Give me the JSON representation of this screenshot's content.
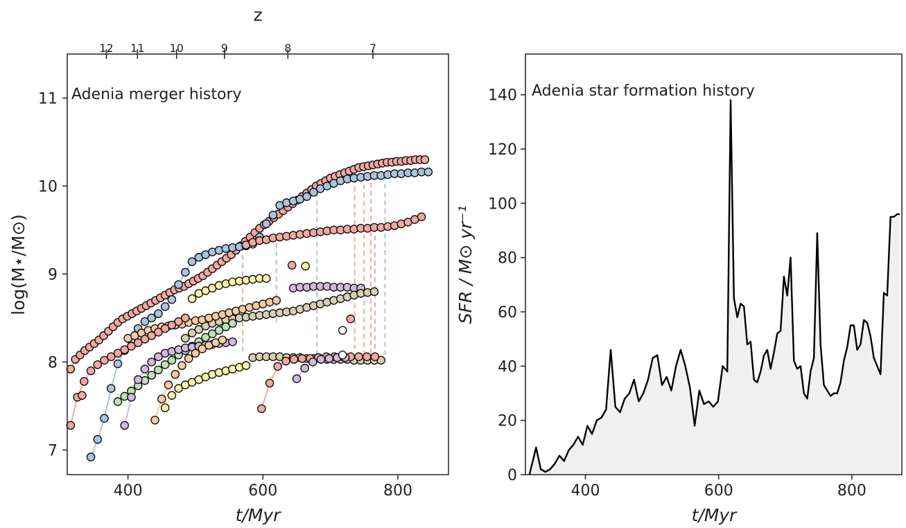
{
  "chart_data": [
    {
      "type": "scatter",
      "title": "Adenia merger history",
      "xlabel": "t/Myr",
      "ylabel": "log(M⋆/M⊙)",
      "xlim": [
        310,
        875
      ],
      "ylim": [
        6.72,
        11.5
      ],
      "xticks": [
        400,
        600,
        800
      ],
      "yticks": [
        7,
        8,
        9,
        10,
        11
      ],
      "top_axis": {
        "label": "z",
        "ticks": [
          {
            "t": 368,
            "z": "12"
          },
          {
            "t": 414,
            "z": "11"
          },
          {
            "t": 472,
            "z": "10"
          },
          {
            "t": 543,
            "z": "9"
          },
          {
            "t": 637,
            "z": "8"
          },
          {
            "t": 763,
            "z": "7"
          }
        ]
      },
      "grid": false,
      "series": [
        {
          "color": "#f1a8a0",
          "x": [
            315,
            322,
            329,
            336,
            343,
            350,
            357,
            364,
            371,
            378,
            385,
            392,
            399,
            406,
            413,
            420,
            427,
            434,
            441,
            448,
            455,
            462,
            469,
            476,
            483,
            490,
            497,
            504,
            511,
            518,
            525,
            532,
            539,
            546,
            553,
            560,
            567,
            574,
            581,
            588,
            595,
            602,
            609,
            616,
            623,
            630,
            637,
            644,
            651,
            658,
            665,
            672,
            679,
            686,
            693,
            700,
            707,
            714,
            721,
            728,
            735,
            742,
            749,
            756,
            763,
            770,
            777,
            784,
            791,
            798,
            805,
            812,
            819,
            826,
            833,
            840
          ],
          "y": [
            7.92,
            8.03,
            8.08,
            8.13,
            8.17,
            8.21,
            8.25,
            8.3,
            8.35,
            8.4,
            8.45,
            8.49,
            8.52,
            8.55,
            8.58,
            8.61,
            8.64,
            8.67,
            8.7,
            8.73,
            8.76,
            8.79,
            8.82,
            8.84,
            8.86,
            8.89,
            8.92,
            8.95,
            8.98,
            9.02,
            9.06,
            9.1,
            9.14,
            9.18,
            9.22,
            9.27,
            9.32,
            9.37,
            9.42,
            9.47,
            9.52,
            9.56,
            9.6,
            9.64,
            9.68,
            9.72,
            9.76,
            9.8,
            9.84,
            9.88,
            9.92,
            9.96,
            10.0,
            10.03,
            10.06,
            10.09,
            10.11,
            10.13,
            10.15,
            10.17,
            10.19,
            10.21,
            10.22,
            10.23,
            10.24,
            10.25,
            10.26,
            10.27,
            10.27,
            10.28,
            10.28,
            10.29,
            10.29,
            10.3,
            10.3,
            10.3
          ]
        },
        {
          "color": "#a9c4e0",
          "x": [
            345,
            355,
            365,
            375,
            385,
            395,
            405,
            415,
            425,
            435,
            445,
            455,
            465,
            475,
            485,
            495,
            505,
            515,
            525,
            535,
            545,
            555,
            565,
            575,
            585,
            595,
            605,
            615,
            625,
            635,
            645,
            655,
            665,
            675,
            685,
            695,
            705,
            715,
            725,
            735,
            745,
            755,
            765,
            775,
            785,
            795,
            805,
            815,
            825,
            835,
            845
          ],
          "y": [
            6.92,
            7.12,
            7.36,
            7.7,
            7.98,
            8.13,
            8.24,
            8.38,
            8.46,
            8.5,
            8.55,
            8.63,
            8.71,
            8.88,
            9.02,
            9.14,
            9.19,
            9.22,
            9.25,
            9.27,
            9.29,
            9.3,
            9.31,
            9.32,
            9.34,
            9.42,
            9.57,
            9.67,
            9.78,
            9.81,
            9.83,
            9.85,
            9.88,
            9.93,
            9.97,
            10.0,
            10.03,
            10.06,
            10.08,
            10.09,
            10.1,
            10.11,
            10.12,
            10.12,
            10.13,
            10.14,
            10.14,
            10.15,
            10.15,
            10.16,
            10.16
          ]
        },
        {
          "color": "#f1a8a0",
          "x": [
            575,
            585,
            595,
            605,
            615,
            625,
            635,
            645,
            655,
            665,
            675,
            685,
            695,
            705,
            715,
            725,
            735,
            745,
            755,
            765,
            775,
            785,
            795,
            805,
            815,
            825,
            835
          ],
          "y": [
            9.33,
            9.36,
            9.38,
            9.39,
            9.41,
            9.42,
            9.43,
            9.44,
            9.45,
            9.46,
            9.47,
            9.48,
            9.49,
            9.5,
            9.5,
            9.51,
            9.51,
            9.52,
            9.52,
            9.53,
            9.53,
            9.54,
            9.55,
            9.57,
            9.59,
            9.62,
            9.65
          ]
        },
        {
          "color": "#f9f3a8",
          "x": [
            495,
            505,
            515,
            525,
            535,
            545,
            555,
            565,
            575,
            585,
            595,
            605
          ],
          "y": [
            8.72,
            8.78,
            8.81,
            8.84,
            8.87,
            8.89,
            8.91,
            8.92,
            8.93,
            8.94,
            8.95,
            8.95
          ]
        },
        {
          "color": "#d4b8dc",
          "x": [
            645,
            655,
            665,
            675,
            685,
            695,
            705,
            715,
            725,
            735,
            745
          ],
          "y": [
            8.84,
            8.85,
            8.85,
            8.86,
            8.86,
            8.86,
            8.85,
            8.85,
            8.85,
            8.84,
            8.84
          ]
        },
        {
          "color": "#d8cfae",
          "x": [
            485,
            495,
            505,
            515,
            525,
            535,
            545,
            555,
            565,
            575,
            585,
            595,
            605,
            615,
            625,
            635,
            645,
            655,
            665,
            675,
            685,
            695,
            705,
            715,
            725,
            735,
            745,
            755,
            765
          ],
          "y": [
            8.27,
            8.33,
            8.37,
            8.41,
            8.44,
            8.46,
            8.48,
            8.49,
            8.5,
            8.51,
            8.52,
            8.53,
            8.54,
            8.55,
            8.56,
            8.57,
            8.58,
            8.6,
            8.62,
            8.64,
            8.66,
            8.68,
            8.7,
            8.72,
            8.74,
            8.76,
            8.78,
            8.79,
            8.8
          ]
        },
        {
          "color": "#f7caa0",
          "x": [
            400,
            410,
            420,
            430,
            440,
            450,
            460,
            470,
            480,
            490,
            500,
            510,
            520,
            530,
            540,
            550,
            560,
            570,
            580,
            590,
            600,
            610,
            620
          ],
          "y": [
            8.27,
            8.3,
            8.33,
            8.36,
            8.38,
            8.4,
            8.41,
            8.42,
            8.43,
            8.45,
            8.47,
            8.48,
            8.5,
            8.52,
            8.54,
            8.56,
            8.58,
            8.6,
            8.62,
            8.64,
            8.66,
            8.68,
            8.7
          ]
        },
        {
          "color": "#bfe0b6",
          "x": [
            385,
            395,
            405,
            415,
            425,
            435,
            445,
            455,
            465,
            475,
            485,
            495,
            505,
            515,
            525,
            535,
            545,
            555
          ],
          "y": [
            7.55,
            7.61,
            7.67,
            7.73,
            7.79,
            7.85,
            7.91,
            7.97,
            8.02,
            8.08,
            8.13,
            8.18,
            8.23,
            8.28,
            8.32,
            8.36,
            8.4,
            8.44
          ]
        },
        {
          "color": "#f9f3a8",
          "x": [
            455,
            465,
            475,
            485,
            495,
            505,
            515,
            525,
            535,
            545,
            555,
            565,
            575
          ],
          "y": [
            7.48,
            7.62,
            7.7,
            7.74,
            7.77,
            7.8,
            7.83,
            7.86,
            7.88,
            7.9,
            7.92,
            7.94,
            7.96
          ]
        },
        {
          "color": "#d8cfae",
          "x": [
            585,
            595,
            605,
            615,
            625,
            635,
            645,
            655,
            665,
            675,
            685,
            695,
            705,
            715,
            725,
            735,
            745,
            755,
            765,
            775
          ],
          "y": [
            8.05,
            8.06,
            8.06,
            8.06,
            8.06,
            8.05,
            8.05,
            8.05,
            8.04,
            8.04,
            8.04,
            8.03,
            8.03,
            8.03,
            8.03,
            8.02,
            8.02,
            8.02,
            8.02,
            8.02
          ]
        },
        {
          "color": "#f1a8a0",
          "x": [
            315,
            325,
            335,
            345,
            355,
            365,
            375,
            385,
            395,
            405,
            415,
            425,
            435,
            445,
            455,
            465,
            475,
            485
          ],
          "y": [
            7.28,
            7.6,
            7.78,
            7.9,
            7.97,
            8.02,
            8.06,
            8.1,
            8.14,
            8.18,
            8.22,
            8.26,
            8.3,
            8.34,
            8.38,
            8.42,
            8.46,
            8.5
          ]
        },
        {
          "color": "#d4b8dc",
          "x": [
            395,
            405,
            415,
            425,
            435,
            445,
            455,
            465,
            475,
            485,
            495,
            505,
            515,
            525,
            535,
            545,
            555
          ],
          "y": [
            7.28,
            7.6,
            7.8,
            7.92,
            8.0,
            8.06,
            8.1,
            8.12,
            8.14,
            8.16,
            8.17,
            8.18,
            8.19,
            8.2,
            8.21,
            8.22,
            8.23
          ]
        },
        {
          "color": "#f7caa0",
          "x": [
            440,
            450,
            460,
            470,
            480,
            490,
            500,
            510,
            520,
            530,
            540
          ],
          "y": [
            7.34,
            7.58,
            7.74,
            7.86,
            7.96,
            8.04,
            8.1,
            8.15,
            8.19,
            8.22,
            8.25
          ]
        },
        {
          "color": "#f1a8a0",
          "x": [
            598,
            610,
            622,
            634,
            646,
            658,
            670,
            682,
            694,
            706,
            718,
            730,
            742,
            754,
            766
          ],
          "y": [
            7.47,
            7.76,
            7.95,
            8.01,
            8.03,
            8.04,
            8.04,
            8.05,
            8.06,
            8.06,
            8.06,
            8.06,
            8.06,
            8.06,
            8.06
          ]
        },
        {
          "color": "#d4b8dc",
          "x": [
            650,
            662,
            674,
            686,
            698,
            710,
            722
          ],
          "y": [
            7.81,
            7.93,
            8.0,
            8.03,
            8.04,
            8.05,
            8.05
          ]
        }
      ],
      "dashed_drops": [
        {
          "color": "#a9c4e0",
          "x": [
            620,
            620
          ],
          "y": [
            9.35,
            8.45
          ]
        },
        {
          "color": "#f1a8a0",
          "x": [
            736,
            736
          ],
          "y": [
            10.18,
            8.15
          ]
        },
        {
          "color": "#f1a8a0",
          "x": [
            750,
            750
          ],
          "y": [
            10.21,
            8.05
          ]
        },
        {
          "color": "#f1a8a0",
          "x": [
            760,
            760
          ],
          "y": [
            10.23,
            8.1
          ]
        },
        {
          "color": "#f1a8a0",
          "x": [
            766,
            766
          ],
          "y": [
            9.53,
            8.1
          ]
        },
        {
          "color": "#a9c4e0",
          "x": [
            781,
            781
          ],
          "y": [
            10.12,
            8.02
          ]
        },
        {
          "color": "#f1a8a0",
          "x": [
            570,
            570
          ],
          "y": [
            9.31,
            8.1
          ]
        },
        {
          "color": "#a9c4e0",
          "x": [
            680,
            680
          ],
          "y": [
            9.93,
            8.04
          ]
        }
      ],
      "extra_points": [
        {
          "x": 332,
          "y": 7.62,
          "color": "#f1a8a0"
        },
        {
          "x": 718,
          "y": 8.36,
          "color": "#ffffff"
        },
        {
          "x": 730,
          "y": 8.49,
          "color": "#f1a8a0"
        },
        {
          "x": 718,
          "y": 8.08,
          "color": "#ffffff"
        },
        {
          "x": 643,
          "y": 9.1,
          "color": "#f1a8a0"
        },
        {
          "x": 663,
          "y": 9.09,
          "color": "#f9f3a8"
        }
      ]
    },
    {
      "type": "area",
      "title": "Adenia star formation history",
      "xlabel": "t/Myr",
      "ylabel": "SFR / M⊙ yr⁻¹",
      "xlim": [
        310,
        875
      ],
      "ylim": [
        0,
        155
      ],
      "xticks": [
        400,
        600,
        800
      ],
      "yticks": [
        0,
        20,
        40,
        60,
        80,
        100,
        120,
        140
      ],
      "grid": false,
      "fill_color": "#f0f0f0",
      "line_color": "#000000",
      "x": [
        316,
        326,
        333,
        340,
        347,
        354,
        361,
        368,
        375,
        382,
        389,
        396,
        403,
        410,
        417,
        424,
        431,
        438,
        445,
        452,
        459,
        466,
        473,
        480,
        487,
        494,
        501,
        508,
        515,
        522,
        529,
        536,
        543,
        550,
        557,
        564,
        571,
        578,
        585,
        592,
        599,
        606,
        613,
        618,
        623,
        628,
        633,
        638,
        643,
        648,
        653,
        658,
        663,
        668,
        673,
        678,
        683,
        688,
        693,
        698,
        703,
        708,
        713,
        718,
        723,
        728,
        733,
        738,
        743,
        748,
        753,
        758,
        763,
        768,
        773,
        778,
        783,
        788,
        793,
        798,
        803,
        808,
        813,
        818,
        823,
        828,
        833,
        838,
        843,
        848,
        853,
        858,
        863,
        868,
        872
      ],
      "y": [
        0,
        10,
        2,
        1,
        2,
        4,
        7,
        5,
        9,
        11,
        14,
        11,
        18,
        15,
        20,
        21,
        24,
        46,
        25,
        23,
        28,
        30,
        35,
        27,
        30,
        35,
        43,
        44,
        33,
        36,
        31,
        40,
        46,
        40,
        32,
        18,
        31,
        26,
        27,
        25,
        27,
        40,
        38,
        138,
        65,
        58,
        63,
        62,
        48,
        49,
        35,
        34,
        38,
        44,
        46,
        39,
        45,
        52,
        53,
        73,
        66,
        80,
        42,
        39,
        40,
        30,
        28,
        38,
        43,
        89,
        48,
        33,
        31,
        29,
        30,
        30,
        34,
        42,
        47,
        55,
        55,
        46,
        48,
        57,
        56,
        51,
        43,
        40,
        37,
        67,
        66,
        95,
        95,
        96,
        96
      ]
    }
  ]
}
